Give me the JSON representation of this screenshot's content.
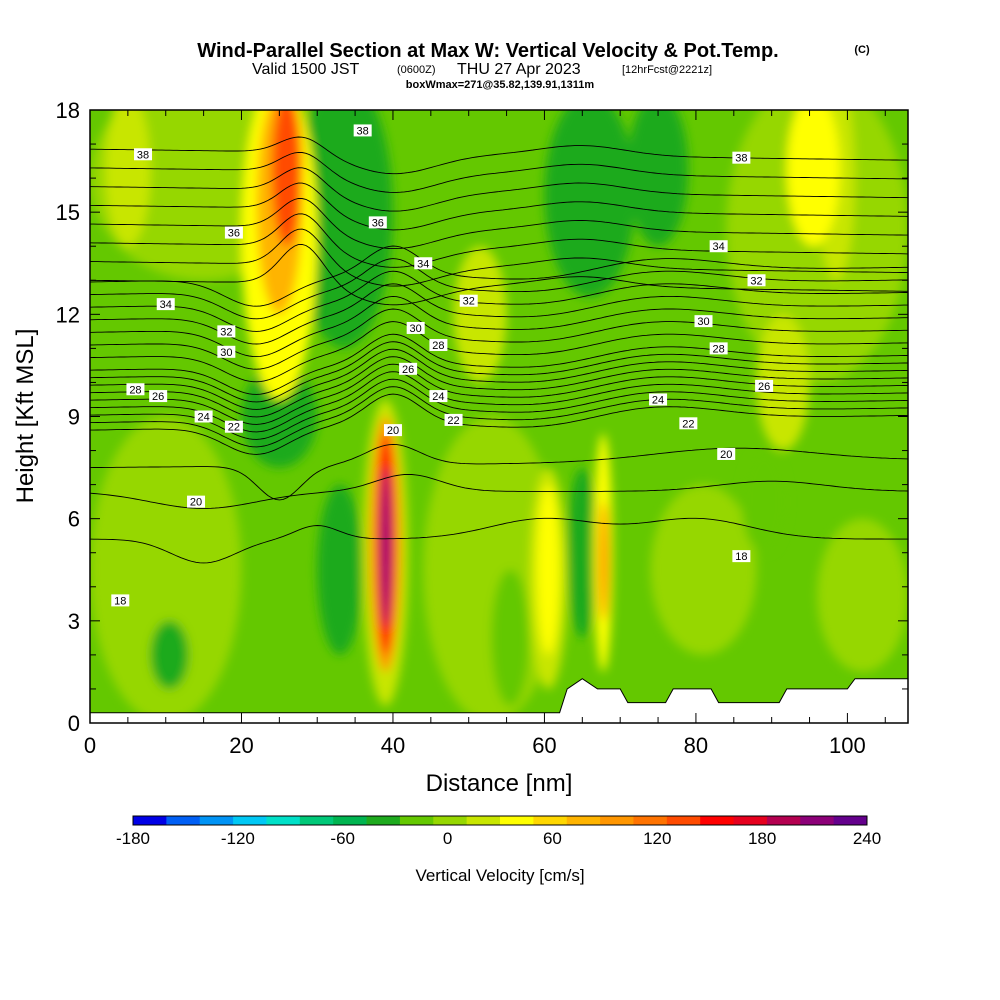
{
  "title": {
    "main": "Wind-Parallel Section at Max W: Vertical Velocity & Pot.Temp.",
    "copyright": "(C)",
    "valid_prefix": "Valid 1500 JST",
    "valid_utc": "(0600Z)",
    "valid_date": "THU 27 Apr 2023",
    "forecast": "[12hrFcst@2221z]",
    "box": "boxWmax=271@35.82,139.91,1311m"
  },
  "colorbar": {
    "label": "Vertical Velocity [cm/s]",
    "tick_labels": [
      "-180",
      "-120",
      "-60",
      "0",
      "60",
      "120",
      "180",
      "240"
    ],
    "colors": [
      "#0000e6",
      "#005ff5",
      "#0093f5",
      "#00c8f5",
      "#00e0c8",
      "#00c878",
      "#00b450",
      "#1eaa1e",
      "#64c800",
      "#96d700",
      "#c8e600",
      "#ffff00",
      "#ffd700",
      "#ffb400",
      "#ff9600",
      "#ff7300",
      "#ff4b00",
      "#ff0000",
      "#e6001e",
      "#b40050",
      "#8c0078",
      "#64008c"
    ]
  },
  "chart_data": {
    "type": "heatmap",
    "xlabel": "Distance [nm]",
    "ylabel": "Height [Kft MSL]",
    "xlim": [
      0,
      108
    ],
    "ylim": [
      0,
      18
    ],
    "x_ticks": [
      0,
      20,
      40,
      60,
      80,
      100
    ],
    "y_ticks": [
      0,
      3,
      6,
      9,
      12,
      15,
      18
    ],
    "fill_variable": "Vertical Velocity [cm/s]",
    "fill_range": [
      -180,
      240
    ],
    "fill_interval": 20,
    "contour_variable": "potential temperature",
    "updraft_max": {
      "x": 39,
      "y": 5,
      "value": 240
    },
    "cores": [
      {
        "x": 39,
        "y": 5.0,
        "value": 240
      },
      {
        "x": 24,
        "y": 16.0,
        "value": 140
      },
      {
        "x": 61,
        "y": 5.5,
        "value": 60
      },
      {
        "x": 68,
        "y": 4.5,
        "value": 120
      },
      {
        "x": 97,
        "y": 15.5,
        "value": 60
      },
      {
        "x": 30,
        "y": 15.0,
        "value": -40
      },
      {
        "x": 37,
        "y": 13.0,
        "value": -40
      },
      {
        "x": 68,
        "y": 15.5,
        "value": -60
      },
      {
        "x": 65,
        "y": 4.5,
        "value": -60
      },
      {
        "x": 33,
        "y": 4.0,
        "value": -40
      },
      {
        "x": 11,
        "y": 2.0,
        "value": -40
      },
      {
        "x": 25,
        "y": 8.5,
        "value": -40
      }
    ],
    "contour_labels": [
      {
        "x": 7,
        "y": 16.7,
        "text": "38"
      },
      {
        "x": 36,
        "y": 17.4,
        "text": "38"
      },
      {
        "x": 86,
        "y": 16.6,
        "text": "38"
      },
      {
        "x": 19,
        "y": 14.4,
        "text": "36"
      },
      {
        "x": 38,
        "y": 14.7,
        "text": "36"
      },
      {
        "x": 83,
        "y": 14.0,
        "text": "34"
      },
      {
        "x": 44,
        "y": 13.5,
        "text": "34"
      },
      {
        "x": 10,
        "y": 12.3,
        "text": "34"
      },
      {
        "x": 50,
        "y": 12.4,
        "text": "32"
      },
      {
        "x": 88,
        "y": 13.0,
        "text": "32"
      },
      {
        "x": 18,
        "y": 11.5,
        "text": "32"
      },
      {
        "x": 43,
        "y": 11.6,
        "text": "30"
      },
      {
        "x": 81,
        "y": 11.8,
        "text": "30"
      },
      {
        "x": 18,
        "y": 10.9,
        "text": "30"
      },
      {
        "x": 46,
        "y": 11.1,
        "text": "28"
      },
      {
        "x": 83,
        "y": 11.0,
        "text": "28"
      },
      {
        "x": 6,
        "y": 9.8,
        "text": "28"
      },
      {
        "x": 42,
        "y": 10.4,
        "text": "26"
      },
      {
        "x": 9,
        "y": 9.6,
        "text": "26"
      },
      {
        "x": 89,
        "y": 9.9,
        "text": "26"
      },
      {
        "x": 46,
        "y": 9.6,
        "text": "24"
      },
      {
        "x": 15,
        "y": 9.0,
        "text": "24"
      },
      {
        "x": 75,
        "y": 9.5,
        "text": "24"
      },
      {
        "x": 19,
        "y": 8.7,
        "text": "22"
      },
      {
        "x": 48,
        "y": 8.9,
        "text": "22"
      },
      {
        "x": 79,
        "y": 8.8,
        "text": "22"
      },
      {
        "x": 40,
        "y": 8.6,
        "text": "20"
      },
      {
        "x": 84,
        "y": 7.9,
        "text": "20"
      },
      {
        "x": 14,
        "y": 6.5,
        "text": "20"
      },
      {
        "x": 86,
        "y": 4.9,
        "text": "18"
      },
      {
        "x": 4,
        "y": 3.6,
        "text": "18"
      }
    ],
    "terrain": [
      [
        0,
        0.3
      ],
      [
        62,
        0.3
      ],
      [
        63,
        1.0
      ],
      [
        65,
        1.3
      ],
      [
        67,
        1.0
      ],
      [
        70,
        1.0
      ],
      [
        71,
        0.6
      ],
      [
        76,
        0.6
      ],
      [
        77,
        1.0
      ],
      [
        82,
        1.0
      ],
      [
        83,
        0.6
      ],
      [
        91,
        0.6
      ],
      [
        92,
        1.0
      ],
      [
        100,
        1.0
      ],
      [
        101,
        1.3
      ],
      [
        108,
        1.3
      ]
    ]
  }
}
